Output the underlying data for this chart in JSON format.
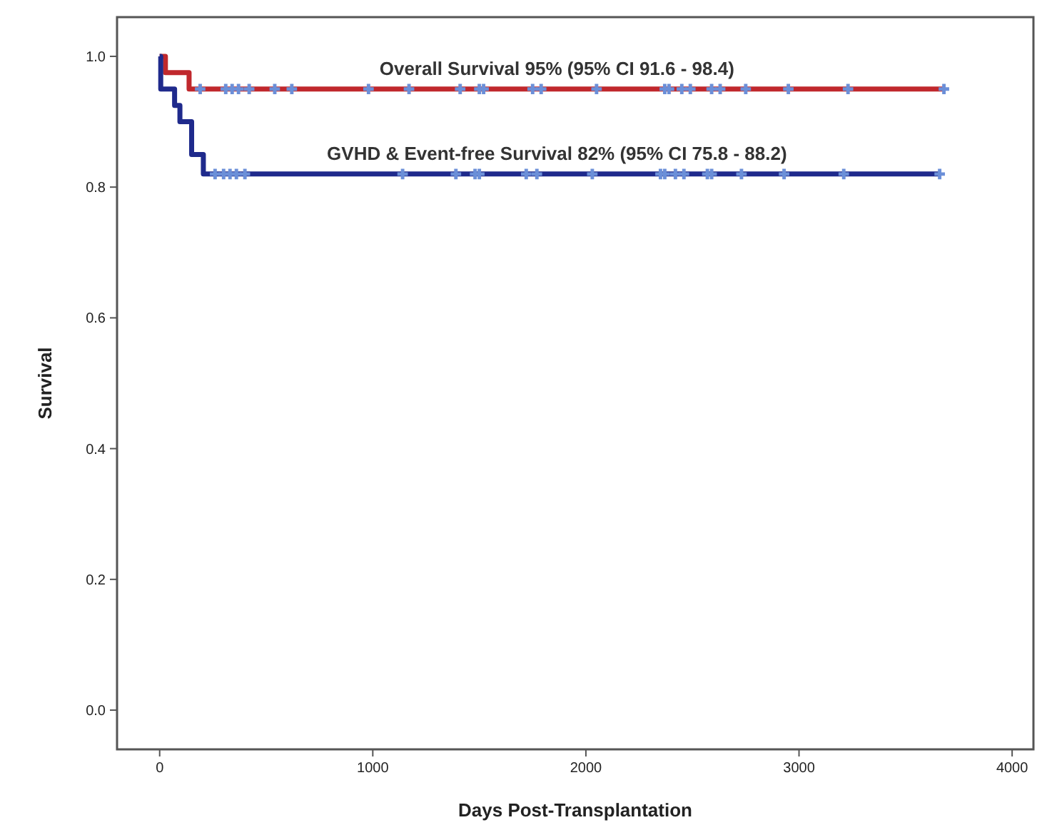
{
  "chart_data": {
    "type": "step",
    "xlabel": "Days Post-Transplantation",
    "ylabel": "Survival",
    "xlim": [
      -200,
      4100
    ],
    "xticks": [
      0,
      1000,
      2000,
      3000,
      4000
    ],
    "ylim": [
      -0.06,
      1.06
    ],
    "yticks": [
      {
        "value": 0,
        "label": "0.0"
      },
      {
        "value": 0.2,
        "label": "0.2"
      },
      {
        "value": 0.4,
        "label": "0.4"
      },
      {
        "value": 0.6,
        "label": "0.6"
      },
      {
        "value": 0.8,
        "label": "0.8"
      },
      {
        "value": 1,
        "label": "1.0"
      }
    ],
    "grid": false,
    "line_style": "solid",
    "series": [
      {
        "color": "#c0282d",
        "x": [
          0,
          27,
          138,
          3680
        ],
        "values": [
          1.0,
          0.975,
          0.95,
          0.95
        ]
      },
      {
        "color": "#1f2a8c",
        "x": [
          0,
          5,
          70,
          95,
          150,
          205,
          3660
        ],
        "values": [
          1.0,
          0.95,
          0.925,
          0.9,
          0.85,
          0.82,
          0.82
        ]
      },
      {
        "type": "scatter",
        "marker": "cross",
        "color": "#6b8fd8",
        "x": [
          190,
          310,
          340,
          370,
          420,
          540,
          620,
          980,
          1170,
          1410,
          1500,
          1520,
          1750,
          1790,
          2050,
          2370,
          2390,
          2450,
          2490,
          2590,
          2630,
          2750,
          2950,
          3230,
          3680
        ],
        "values": [
          0.95,
          0.95,
          0.95,
          0.95,
          0.95,
          0.95,
          0.95,
          0.95,
          0.95,
          0.95,
          0.95,
          0.95,
          0.95,
          0.95,
          0.95,
          0.95,
          0.95,
          0.95,
          0.95,
          0.95,
          0.95,
          0.95,
          0.95,
          0.95,
          0.95
        ]
      },
      {
        "type": "scatter",
        "marker": "cross",
        "color": "#6b8fd8",
        "x": [
          260,
          300,
          330,
          360,
          400,
          1140,
          1390,
          1480,
          1500,
          1720,
          1770,
          2030,
          2350,
          2370,
          2420,
          2460,
          2570,
          2590,
          2730,
          2930,
          3210,
          3660
        ],
        "values": [
          0.82,
          0.82,
          0.82,
          0.82,
          0.82,
          0.82,
          0.82,
          0.82,
          0.82,
          0.82,
          0.82,
          0.82,
          0.82,
          0.82,
          0.82,
          0.82,
          0.82,
          0.82,
          0.82,
          0.82,
          0.82,
          0.82
        ]
      }
    ],
    "annotations": [
      "Overall Survival 95% (95% CI 91.6 - 98.4)",
      "GVHD & Event-free Survival 82% (95% CI 75.8 - 88.2)"
    ]
  }
}
